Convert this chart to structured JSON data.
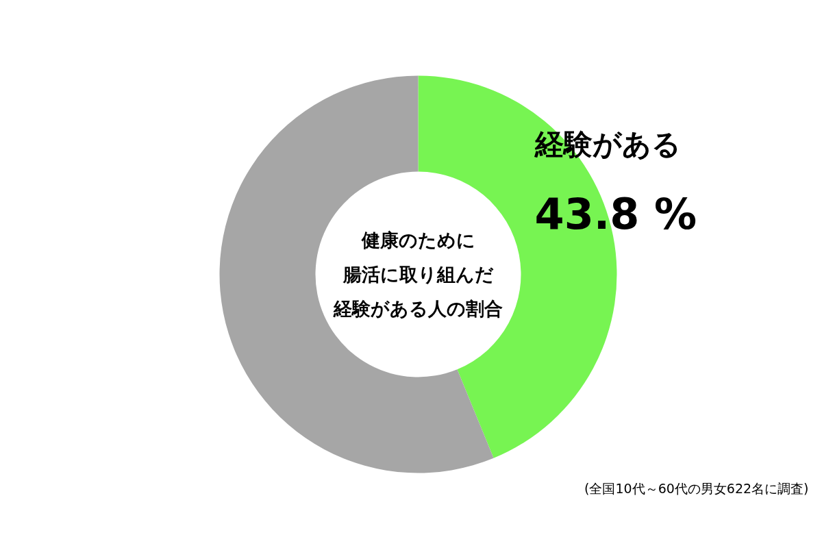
{
  "chart_data": {
    "type": "donut",
    "title": "健康のために腸活に取り組んだ経験がある人の割合",
    "categories": [
      "経験がある",
      null
    ],
    "values": [
      43.8,
      56.2
    ],
    "colors": [
      "#77f452",
      "#a6a6a6"
    ],
    "value_labels": [
      "43.8 %",
      null
    ],
    "annotations": [
      "(全国10代～60代の男女622名に調査)"
    ]
  }
}
